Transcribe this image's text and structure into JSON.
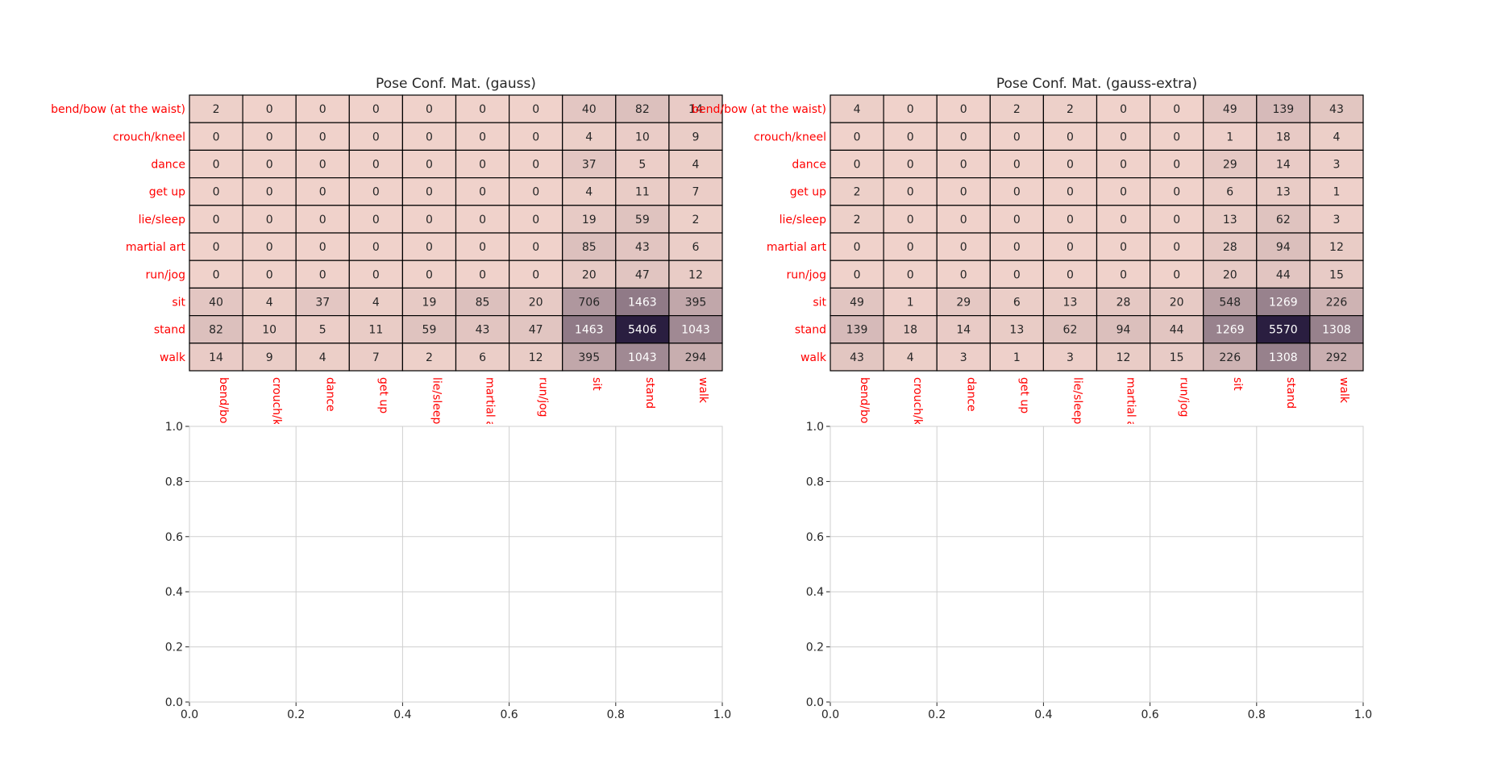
{
  "chart_data": [
    {
      "type": "heatmap",
      "title": "Pose Conf. Mat. (gauss)",
      "row_labels": [
        "bend/bow (at the waist)",
        "crouch/kneel",
        "dance",
        "get up",
        "lie/sleep",
        "martial art",
        "run/jog",
        "sit",
        "stand",
        "walk"
      ],
      "col_labels": [
        "bend/bow",
        "crouch/kn",
        "dance",
        "get up",
        "lie/sleep",
        "martial a",
        "run/jog",
        "sit",
        "stand",
        "walk"
      ],
      "values": [
        [
          2,
          0,
          0,
          0,
          0,
          0,
          0,
          40,
          82,
          14
        ],
        [
          0,
          0,
          0,
          0,
          0,
          0,
          0,
          4,
          10,
          9
        ],
        [
          0,
          0,
          0,
          0,
          0,
          0,
          0,
          37,
          5,
          4
        ],
        [
          0,
          0,
          0,
          0,
          0,
          0,
          0,
          4,
          11,
          7
        ],
        [
          0,
          0,
          0,
          0,
          0,
          0,
          0,
          19,
          59,
          2
        ],
        [
          0,
          0,
          0,
          0,
          0,
          0,
          0,
          85,
          43,
          6
        ],
        [
          0,
          0,
          0,
          0,
          0,
          0,
          0,
          20,
          47,
          12
        ],
        [
          40,
          4,
          37,
          4,
          19,
          85,
          20,
          706,
          1463,
          395
        ],
        [
          82,
          10,
          5,
          11,
          59,
          43,
          47,
          1463,
          5406,
          1043
        ],
        [
          14,
          9,
          4,
          7,
          2,
          6,
          12,
          395,
          1043,
          294
        ]
      ],
      "vmax": 5406,
      "colors": {
        "low": "#f0d2cb",
        "high": "#2a1e40",
        "cell_border": "#000000",
        "label": "#ff0000",
        "text_dark": "#262626",
        "text_light": "#ffffff"
      }
    },
    {
      "type": "heatmap",
      "title": "Pose Conf. Mat. (gauss-extra)",
      "row_labels": [
        "bend/bow (at the waist)",
        "crouch/kneel",
        "dance",
        "get up",
        "lie/sleep",
        "martial art",
        "run/jog",
        "sit",
        "stand",
        "walk"
      ],
      "col_labels": [
        "bend/bow",
        "crouch/kn",
        "dance",
        "get up",
        "lie/sleep",
        "martial a",
        "run/jog",
        "sit",
        "stand",
        "walk"
      ],
      "values": [
        [
          4,
          0,
          0,
          2,
          2,
          0,
          0,
          49,
          139,
          43
        ],
        [
          0,
          0,
          0,
          0,
          0,
          0,
          0,
          1,
          18,
          4
        ],
        [
          0,
          0,
          0,
          0,
          0,
          0,
          0,
          29,
          14,
          3
        ],
        [
          2,
          0,
          0,
          0,
          0,
          0,
          0,
          6,
          13,
          1
        ],
        [
          2,
          0,
          0,
          0,
          0,
          0,
          0,
          13,
          62,
          3
        ],
        [
          0,
          0,
          0,
          0,
          0,
          0,
          0,
          28,
          94,
          12
        ],
        [
          0,
          0,
          0,
          0,
          0,
          0,
          0,
          20,
          44,
          15
        ],
        [
          49,
          1,
          29,
          6,
          13,
          28,
          20,
          548,
          1269,
          226
        ],
        [
          139,
          18,
          14,
          13,
          62,
          94,
          44,
          1269,
          5570,
          1308
        ],
        [
          43,
          4,
          3,
          1,
          3,
          12,
          15,
          226,
          1308,
          292
        ]
      ],
      "vmax": 5570,
      "colors": {
        "low": "#f0d2cb",
        "high": "#2a1e40",
        "cell_border": "#000000",
        "label": "#ff0000",
        "text_dark": "#262626",
        "text_light": "#ffffff"
      }
    },
    {
      "type": "line",
      "title": "",
      "series": [],
      "xlim": [
        0.0,
        1.0
      ],
      "ylim": [
        0.0,
        1.0
      ],
      "x_ticks": [
        "0.0",
        "0.2",
        "0.4",
        "0.6",
        "0.8",
        "1.0"
      ],
      "y_ticks": [
        "0.0",
        "0.2",
        "0.4",
        "0.6",
        "0.8",
        "1.0"
      ],
      "grid": true
    },
    {
      "type": "line",
      "title": "",
      "series": [],
      "xlim": [
        0.0,
        1.0
      ],
      "ylim": [
        0.0,
        1.0
      ],
      "x_ticks": [
        "0.0",
        "0.2",
        "0.4",
        "0.6",
        "0.8",
        "1.0"
      ],
      "y_ticks": [
        "0.0",
        "0.2",
        "0.4",
        "0.6",
        "0.8",
        "1.0"
      ],
      "grid": true
    }
  ]
}
